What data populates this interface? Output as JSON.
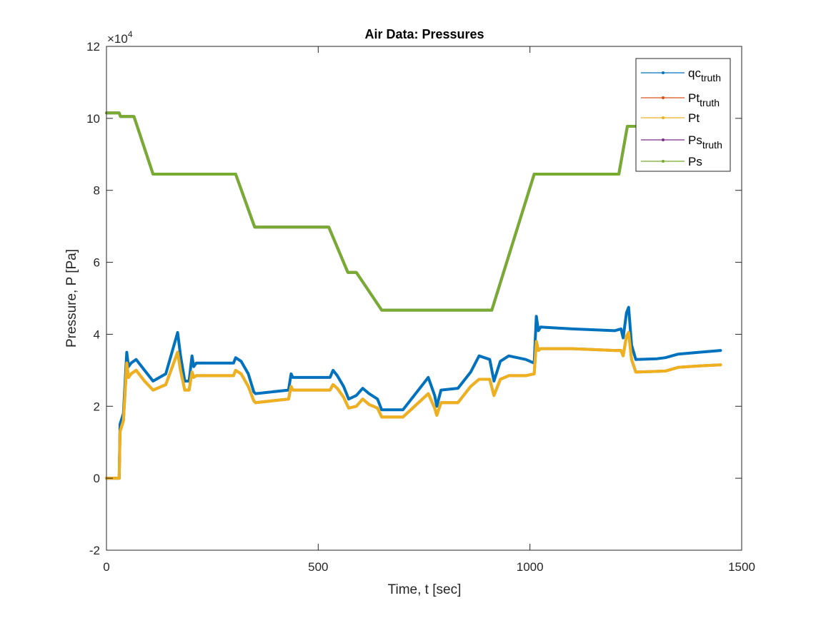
{
  "chart_data": {
    "type": "line",
    "title": "Air Data: Pressures",
    "xlabel": "Time, t [sec]",
    "ylabel": "Pressure, P [Pa]",
    "xlim": [
      0,
      1500
    ],
    "ylim": [
      -2,
      12
    ],
    "y_exponent_label": "×10",
    "y_exponent_power": "4",
    "xticks": [
      0,
      500,
      1000,
      1500
    ],
    "xtick_labels": [
      "0",
      "500",
      "1000",
      "1500"
    ],
    "yticks": [
      -2,
      0,
      2,
      4,
      6,
      8,
      10,
      12
    ],
    "ytick_labels": [
      "-2",
      "0",
      "2",
      "4",
      "6",
      "8",
      "10",
      "12"
    ],
    "grid": false,
    "legend_position": "top-right",
    "series": [
      {
        "name": "qc",
        "subscript": "truth",
        "color": "#0072BD",
        "x": [
          0,
          30,
          32,
          40,
          48,
          52,
          58,
          70,
          90,
          110,
          140,
          168,
          175,
          185,
          195,
          202,
          206,
          212,
          300,
          305,
          318,
          335,
          348,
          352,
          430,
          436,
          440,
          528,
          535,
          545,
          560,
          572,
          590,
          605,
          620,
          640,
          650,
          660,
          700,
          760,
          775,
          780,
          790,
          830,
          860,
          880,
          905,
          915,
          930,
          950,
          990,
          1010,
          1015,
          1020,
          1025,
          1100,
          1200,
          1215,
          1220,
          1228,
          1233,
          1240,
          1250,
          1300,
          1320,
          1350,
          1400,
          1450
        ],
        "y": [
          0,
          0,
          1.5,
          1.8,
          3.5,
          3.1,
          3.2,
          3.3,
          3.0,
          2.7,
          2.9,
          4.05,
          3.4,
          2.7,
          2.7,
          3.4,
          3.1,
          3.2,
          3.2,
          3.35,
          3.25,
          2.9,
          2.4,
          2.35,
          2.45,
          2.9,
          2.8,
          2.8,
          3.0,
          2.85,
          2.55,
          2.2,
          2.3,
          2.5,
          2.35,
          2.2,
          1.9,
          1.9,
          1.9,
          2.8,
          2.3,
          2.0,
          2.45,
          2.5,
          2.95,
          3.4,
          3.3,
          2.7,
          3.25,
          3.4,
          3.3,
          3.2,
          4.5,
          4.1,
          4.2,
          4.15,
          4.1,
          4.15,
          3.9,
          4.6,
          4.75,
          3.7,
          3.3,
          3.32,
          3.35,
          3.45,
          3.5,
          3.55
        ]
      },
      {
        "name": "Pt",
        "subscript": "truth",
        "color": "#D95319",
        "x": [
          0,
          30,
          32,
          40,
          48,
          52,
          58,
          70,
          90,
          110,
          140,
          168,
          175,
          185,
          195,
          202,
          206,
          212,
          300,
          305,
          318,
          335,
          348,
          352,
          430,
          436,
          440,
          528,
          535,
          545,
          560,
          572,
          590,
          605,
          620,
          640,
          650,
          660,
          700,
          760,
          775,
          780,
          790,
          830,
          860,
          880,
          905,
          915,
          930,
          950,
          990,
          1010,
          1015,
          1020,
          1025,
          1100,
          1200,
          1215,
          1220,
          1228,
          1233,
          1240,
          1250,
          1300,
          1320,
          1350,
          1400,
          1450
        ],
        "y": [
          0,
          0,
          1.3,
          1.6,
          3.2,
          2.8,
          2.9,
          3.0,
          2.7,
          2.45,
          2.6,
          3.5,
          3.0,
          2.45,
          2.45,
          2.95,
          2.8,
          2.85,
          2.85,
          3.0,
          2.9,
          2.55,
          2.15,
          2.1,
          2.2,
          2.55,
          2.45,
          2.45,
          2.6,
          2.5,
          2.25,
          1.95,
          2.0,
          2.2,
          2.05,
          1.95,
          1.7,
          1.7,
          1.7,
          2.35,
          1.95,
          1.75,
          2.1,
          2.1,
          2.55,
          2.75,
          2.75,
          2.3,
          2.75,
          2.85,
          2.85,
          2.9,
          3.8,
          3.55,
          3.6,
          3.6,
          3.55,
          3.55,
          3.4,
          3.95,
          4.05,
          3.3,
          2.95,
          2.97,
          2.98,
          3.08,
          3.12,
          3.15
        ]
      },
      {
        "name": "Pt",
        "subscript": "",
        "color": "#EDB120",
        "x": [
          0,
          30,
          32,
          40,
          48,
          52,
          58,
          70,
          90,
          110,
          140,
          168,
          175,
          185,
          195,
          202,
          206,
          212,
          300,
          305,
          318,
          335,
          348,
          352,
          430,
          436,
          440,
          528,
          535,
          545,
          560,
          572,
          590,
          605,
          620,
          640,
          650,
          660,
          700,
          760,
          775,
          780,
          790,
          830,
          860,
          880,
          905,
          915,
          930,
          950,
          990,
          1010,
          1015,
          1020,
          1025,
          1100,
          1200,
          1215,
          1220,
          1228,
          1233,
          1240,
          1250,
          1300,
          1320,
          1350,
          1400,
          1450
        ],
        "y": [
          0,
          0,
          1.3,
          1.6,
          3.2,
          2.8,
          2.9,
          3.0,
          2.7,
          2.45,
          2.6,
          3.5,
          3.0,
          2.45,
          2.45,
          2.95,
          2.8,
          2.85,
          2.85,
          3.0,
          2.9,
          2.55,
          2.15,
          2.1,
          2.2,
          2.55,
          2.45,
          2.45,
          2.6,
          2.5,
          2.25,
          1.95,
          2.0,
          2.2,
          2.05,
          1.95,
          1.7,
          1.7,
          1.7,
          2.35,
          1.95,
          1.75,
          2.1,
          2.1,
          2.55,
          2.75,
          2.75,
          2.3,
          2.75,
          2.85,
          2.85,
          2.9,
          3.8,
          3.55,
          3.6,
          3.6,
          3.55,
          3.55,
          3.4,
          3.95,
          4.05,
          3.3,
          2.95,
          2.97,
          2.98,
          3.08,
          3.12,
          3.15
        ]
      },
      {
        "name": "Ps",
        "subscript": "truth",
        "color": "#7E2F8E",
        "x": [
          0,
          30,
          33,
          65,
          110,
          155,
          305,
          350,
          395,
          525,
          570,
          590,
          650,
          910,
          1010,
          1210,
          1230,
          1250
        ],
        "y": [
          10.15,
          10.15,
          10.05,
          10.05,
          8.45,
          8.45,
          8.45,
          6.98,
          6.98,
          6.98,
          5.72,
          5.72,
          4.67,
          4.67,
          8.45,
          8.45,
          9.78,
          9.78
        ]
      },
      {
        "name": "Ps",
        "subscript": "",
        "color": "#77AC30",
        "x": [
          0,
          30,
          33,
          65,
          110,
          155,
          305,
          350,
          395,
          525,
          570,
          590,
          650,
          910,
          1010,
          1210,
          1230,
          1250
        ],
        "y": [
          10.15,
          10.15,
          10.05,
          10.05,
          8.45,
          8.45,
          8.45,
          6.98,
          6.98,
          6.98,
          5.72,
          5.72,
          4.67,
          4.67,
          8.45,
          8.45,
          9.78,
          9.78
        ]
      }
    ]
  }
}
